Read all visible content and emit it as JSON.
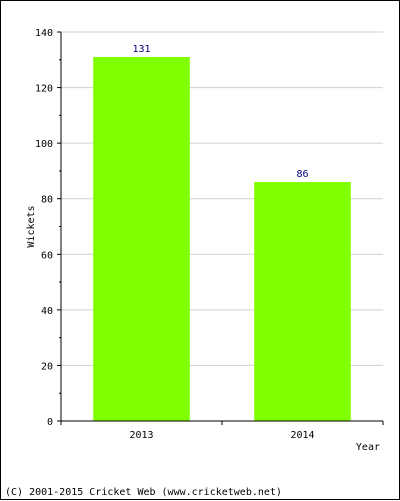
{
  "chart_data": {
    "type": "bar",
    "categories": [
      "2013",
      "2014"
    ],
    "values": [
      131,
      86
    ],
    "xlabel": "Year",
    "ylabel": "Wickets",
    "ylim": [
      0,
      140
    ],
    "yticks": [
      0,
      20,
      40,
      60,
      80,
      100,
      120,
      140
    ],
    "grid": true,
    "bar_color": "#80ff00",
    "data_label_color": "#000080",
    "grid_color": "#d0d0d0"
  },
  "footer": {
    "copyright": "(C) 2001-2015 Cricket Web (www.cricketweb.net)"
  }
}
